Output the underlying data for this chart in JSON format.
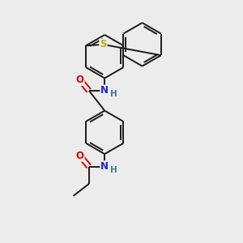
{
  "background_color": "#ececec",
  "bond_color": "#1a1a1a",
  "atom_colors": {
    "N": "#2222dd",
    "O": "#dd0000",
    "S": "#bbaa00",
    "H": "#447788"
  },
  "figsize": [
    3.0,
    3.0
  ],
  "dpi": 100,
  "xlim": [
    0,
    10
  ],
  "ylim": [
    0,
    10
  ]
}
